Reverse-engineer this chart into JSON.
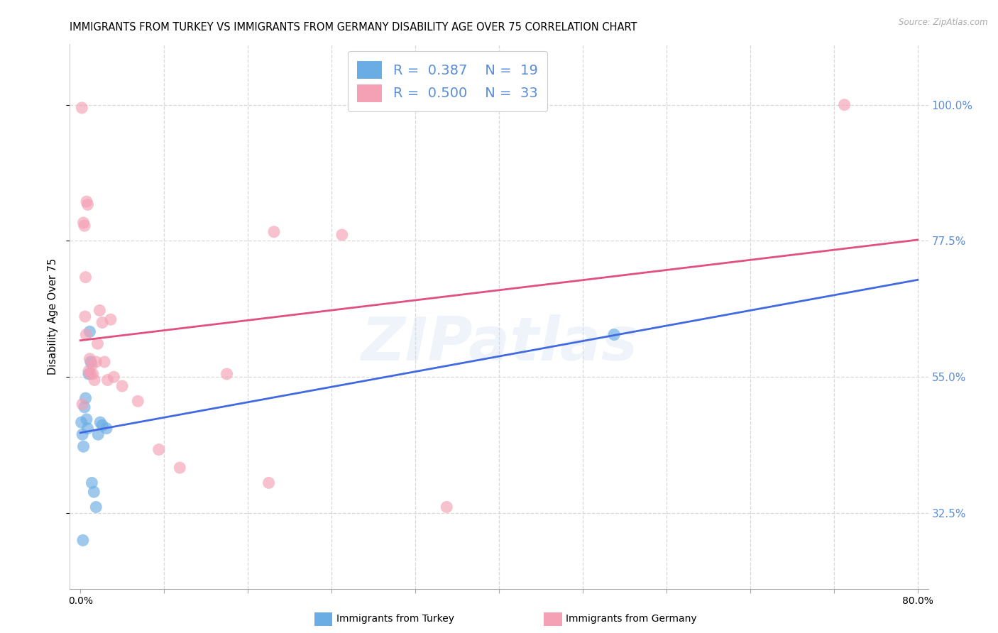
{
  "title": "IMMIGRANTS FROM TURKEY VS IMMIGRANTS FROM GERMANY DISABILITY AGE OVER 75 CORRELATION CHART",
  "source": "Source: ZipAtlas.com",
  "ylabel": "Disability Age Over 75",
  "x_tick_labels": [
    "0.0%",
    "",
    "",
    "",
    "",
    "",
    "",
    "",
    "",
    "",
    "80.0%"
  ],
  "x_tick_values": [
    0.0,
    8.0,
    16.0,
    24.0,
    32.0,
    40.0,
    48.0,
    56.0,
    64.0,
    72.0,
    80.0
  ],
  "y_tick_labels": [
    "32.5%",
    "55.0%",
    "77.5%",
    "100.0%"
  ],
  "y_tick_values": [
    32.5,
    55.0,
    77.5,
    100.0
  ],
  "xlim": [
    -1.0,
    81.0
  ],
  "ylim": [
    20.0,
    110.0
  ],
  "legend_R": [
    "0.387",
    "0.500"
  ],
  "legend_N": [
    "19",
    "33"
  ],
  "blue_color": "#6aade4",
  "pink_color": "#f4a0b5",
  "blue_line_color": "#4169e1",
  "pink_line_color": "#e05080",
  "watermark": "ZIPatlas",
  "turkey_x": [
    0.1,
    0.2,
    0.3,
    0.4,
    0.5,
    0.6,
    0.7,
    0.8,
    0.9,
    1.0,
    1.1,
    1.3,
    1.5,
    1.7,
    1.9,
    2.1,
    2.5,
    51.0,
    0.25
  ],
  "turkey_y": [
    47.5,
    45.5,
    43.5,
    50.0,
    51.5,
    48.0,
    46.5,
    55.5,
    62.5,
    57.5,
    37.5,
    36.0,
    33.5,
    45.5,
    47.5,
    47.0,
    46.5,
    62.0,
    28.0
  ],
  "germany_x": [
    0.2,
    0.3,
    0.4,
    0.5,
    0.6,
    0.7,
    0.8,
    0.9,
    1.0,
    1.1,
    1.2,
    1.35,
    1.5,
    1.65,
    1.85,
    2.1,
    2.3,
    2.6,
    2.9,
    3.2,
    4.0,
    5.5,
    7.5,
    9.5,
    14.0,
    18.0,
    18.5,
    25.0,
    35.0,
    0.45,
    0.55,
    0.15,
    73.0
  ],
  "germany_y": [
    50.5,
    80.5,
    80.0,
    71.5,
    84.0,
    83.5,
    56.0,
    58.0,
    55.5,
    57.0,
    55.5,
    54.5,
    57.5,
    60.5,
    66.0,
    64.0,
    57.5,
    54.5,
    64.5,
    55.0,
    53.5,
    51.0,
    43.0,
    40.0,
    55.5,
    37.5,
    79.0,
    78.5,
    33.5,
    65.0,
    62.0,
    99.5,
    100.0
  ],
  "background_color": "#ffffff",
  "grid_color": "#d8d8d8",
  "title_fontsize": 10.5,
  "axis_label_fontsize": 10.5,
  "tick_fontsize": 10,
  "right_axis_color": "#5b8dd9",
  "legend_text_color": "#5b8dd9"
}
